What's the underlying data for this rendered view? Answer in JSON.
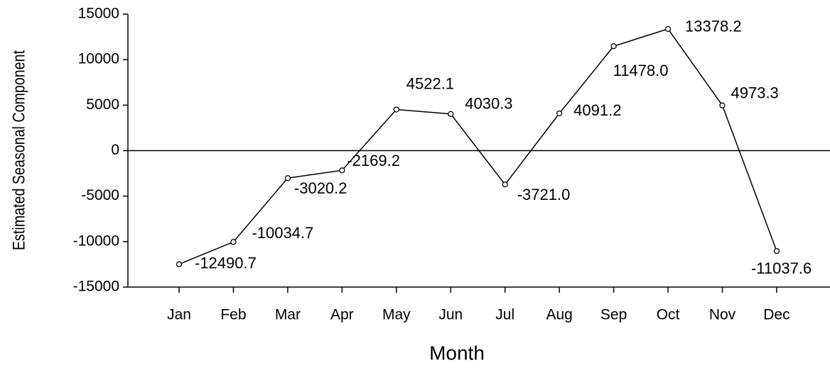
{
  "chart_data": {
    "type": "line",
    "x_label": "Month",
    "y_label": "Estimated Seasonal Component",
    "categories": [
      "Jan",
      "Feb",
      "Mar",
      "Apr",
      "May",
      "Jun",
      "Jul",
      "Aug",
      "Sep",
      "Oct",
      "Nov",
      "Dec"
    ],
    "values": [
      -12490.7,
      -10034.7,
      -3020.2,
      -2169.2,
      4522.1,
      4030.3,
      -3721.0,
      4091.2,
      11478.0,
      13378.2,
      4973.3,
      -11037.6
    ],
    "value_labels": [
      "-12490.7",
      "-10034.7",
      "-3020.2",
      "-2169.2",
      "4522.1",
      "4030.3",
      "-3721.0",
      "4091.2",
      "11478.0",
      "13378.2",
      "4973.3",
      "-11037.6"
    ],
    "color": "#000000",
    "ylim": [
      -15000,
      15000
    ],
    "yticks": [
      -15000,
      -10000,
      -5000,
      0,
      5000,
      10000,
      15000
    ]
  }
}
